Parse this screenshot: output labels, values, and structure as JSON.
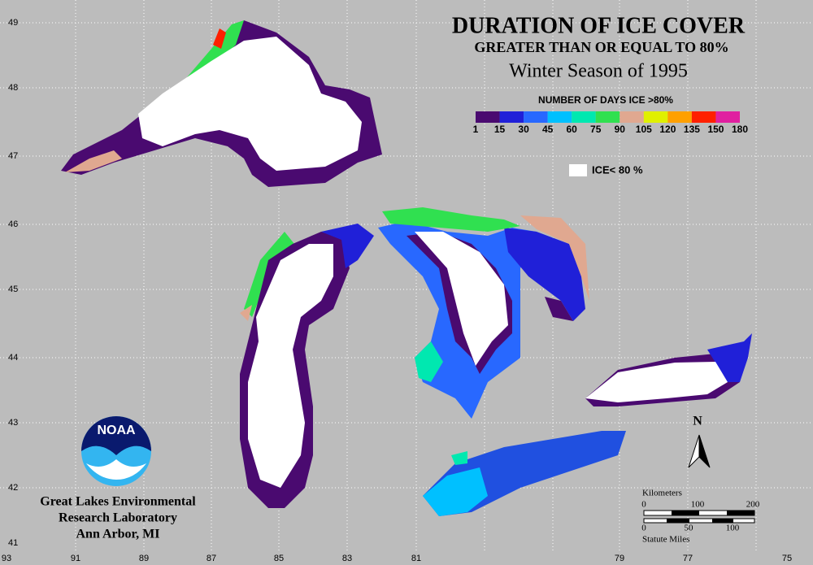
{
  "title": "DURATION OF ICE COVER",
  "subtitle": "GREATER THAN OR EQUAL TO 80%",
  "season": "Winter Season of 1995",
  "legend": {
    "title": "NUMBER OF DAYS ICE >80%",
    "ticks": [
      "1",
      "15",
      "30",
      "45",
      "60",
      "75",
      "90",
      "105",
      "120",
      "135",
      "150",
      "180"
    ],
    "colors": [
      "#4a0a70",
      "#2020d8",
      "#2868ff",
      "#00c0ff",
      "#00e8b0",
      "#30e050",
      "#e0a890",
      "#e0f000",
      "#ffa000",
      "#ff2000",
      "#e020a0"
    ],
    "ice_label": "ICE< 80 %"
  },
  "latitudes": [
    "49",
    "48",
    "47",
    "46",
    "45",
    "44",
    "43",
    "42",
    "41"
  ],
  "longitudes": [
    "93",
    "91",
    "89",
    "87",
    "85",
    "83",
    "81",
    "79",
    "77",
    "75"
  ],
  "scale": {
    "km_title": "Kilometers",
    "km_ticks": [
      "0",
      "100",
      "200"
    ],
    "mi_ticks": [
      "0",
      "50",
      "100"
    ],
    "mi_title": "Statute Miles"
  },
  "north": "N",
  "logo": "NOAA",
  "credit": [
    "Great Lakes Environmental",
    "Research Laboratory",
    "Ann Arbor, MI"
  ]
}
